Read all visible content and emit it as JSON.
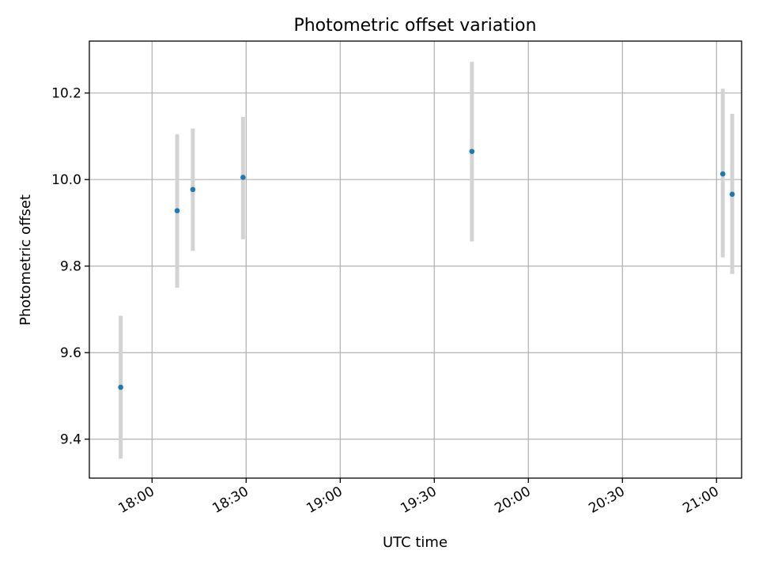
{
  "chart_data": {
    "type": "scatter",
    "title": "Photometric offset variation",
    "xlabel": "UTC time",
    "ylabel": "Photometric offset",
    "x_axis": "time",
    "xlim": [
      "17:40",
      "21:08"
    ],
    "ylim": [
      9.31,
      10.32
    ],
    "xticks": [
      "18:00",
      "18:30",
      "19:00",
      "19:30",
      "20:00",
      "20:30",
      "21:00"
    ],
    "yticks": [
      9.4,
      9.6,
      9.8,
      10.0,
      10.2
    ],
    "ytick_labels": [
      "9.4",
      "9.6",
      "9.8",
      "10.0",
      "10.2"
    ],
    "grid": true,
    "colors": {
      "marker": "#1f77b4",
      "errorbar": "#d3d3d3"
    },
    "series": [
      {
        "points": [
          {
            "x": "17:50",
            "y": 9.52,
            "err_low": 9.355,
            "err_high": 9.685
          },
          {
            "x": "18:08",
            "y": 9.928,
            "err_low": 9.75,
            "err_high": 10.105
          },
          {
            "x": "18:13",
            "y": 9.977,
            "err_low": 9.835,
            "err_high": 10.118
          },
          {
            "x": "18:29",
            "y": 10.005,
            "err_low": 9.862,
            "err_high": 10.145
          },
          {
            "x": "19:42",
            "y": 10.065,
            "err_low": 9.857,
            "err_high": 10.272
          },
          {
            "x": "21:02",
            "y": 10.013,
            "err_low": 9.82,
            "err_high": 10.21
          },
          {
            "x": "21:05",
            "y": 9.966,
            "err_low": 9.782,
            "err_high": 10.152
          }
        ]
      }
    ]
  }
}
